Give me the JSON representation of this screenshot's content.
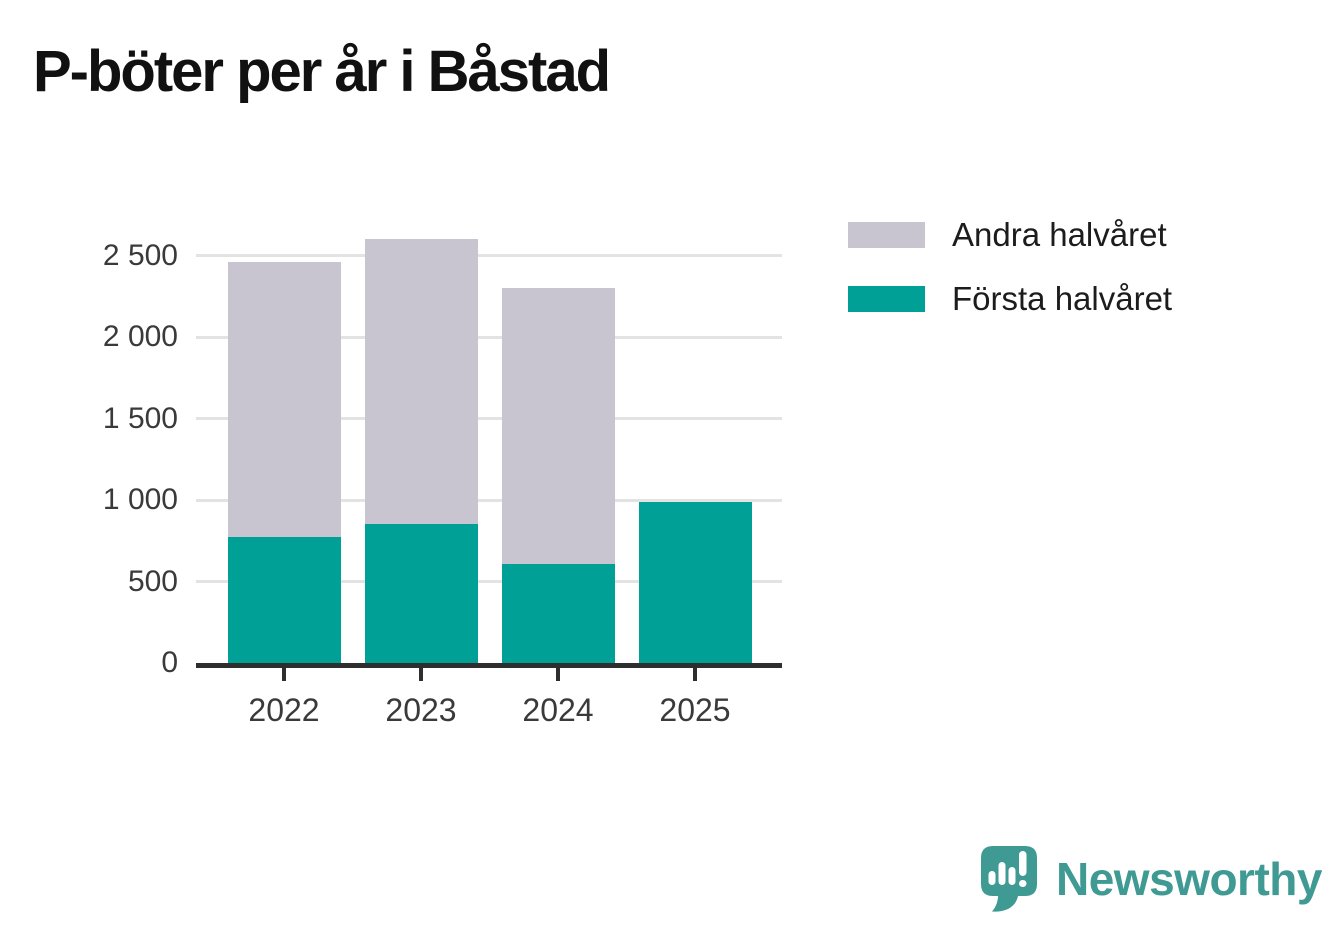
{
  "title": "P-böter per år i Båstad",
  "legend": [
    {
      "label": "Andra halvåret",
      "color": "#c8c5d0"
    },
    {
      "label": "Första halvåret",
      "color": "#00a096"
    }
  ],
  "x_axis": {
    "labels": [
      "2022",
      "2023",
      "2024",
      "2025"
    ]
  },
  "y_axis": {
    "tick_labels": [
      "0",
      "500",
      "1 000",
      "1 500",
      "2 000",
      "2 500"
    ]
  },
  "branding": {
    "logo_text": "Newsworthy",
    "logo_color": "#3f9a93"
  },
  "chart_data": {
    "type": "bar",
    "stacked": true,
    "title": "P-böter per år i Båstad",
    "categories": [
      "2022",
      "2023",
      "2024",
      "2025"
    ],
    "series": [
      {
        "name": "Första halvåret",
        "color": "#00a096",
        "values": [
          770,
          850,
          610,
          990
        ]
      },
      {
        "name": "Andra halvåret",
        "color": "#c8c5d0",
        "values": [
          1690,
          1750,
          1690,
          0
        ]
      }
    ],
    "stack_totals": [
      2460,
      2600,
      2300,
      990
    ],
    "xlabel": "",
    "ylabel": "",
    "ylim": [
      0,
      2650
    ],
    "yticks": [
      {
        "value": 0,
        "label": "0"
      },
      {
        "value": 500,
        "label": "500"
      },
      {
        "value": 1000,
        "label": "1 000"
      },
      {
        "value": 1500,
        "label": "1 500"
      },
      {
        "value": 2000,
        "label": "2 000"
      },
      {
        "value": 2500,
        "label": "2 500"
      }
    ],
    "grid": true,
    "legend_position": "top-right"
  }
}
